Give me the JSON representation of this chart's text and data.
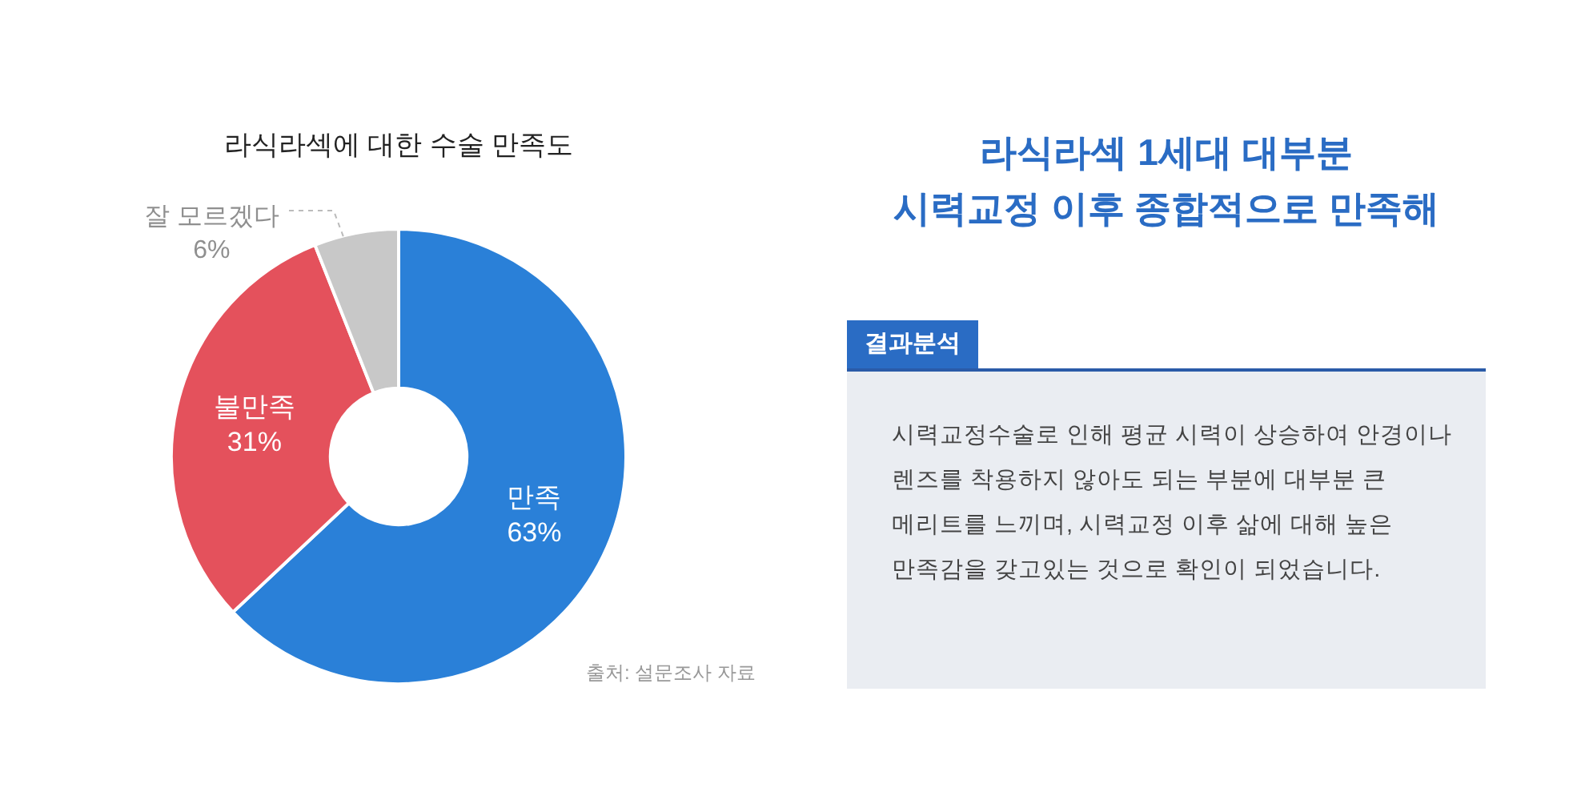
{
  "chart_data": [
    {
      "type": "donut",
      "title": "라식라섹에 대한 수술 만족도",
      "categories": [
        "만족",
        "불만족",
        "잘 모르겠다"
      ],
      "values": [
        63,
        31,
        6
      ],
      "colors": [
        "#2a80d8",
        "#e4515c",
        "#c8c8c8"
      ],
      "value_labels": [
        "63%",
        "31%",
        "6%"
      ],
      "annotations": [
        "출처: 설문조사 자료"
      ]
    },
    {
      "type": "other",
      "title": "라식라섹 1세대 대부분\n시력교정 이후 종합적으로 만족해",
      "annotations": [
        "결과분석",
        "시력교정수술로 인해 평균 시력이 상승하여 안경이나 렌즈를 착용하지 않아도 되는 부분에 대부분 큰 메리트를 느끼며, 시력교정 이후 삶에 대해 높은 만족감을 갖고있는 것으로 확인이 되었습니다."
      ]
    }
  ]
}
